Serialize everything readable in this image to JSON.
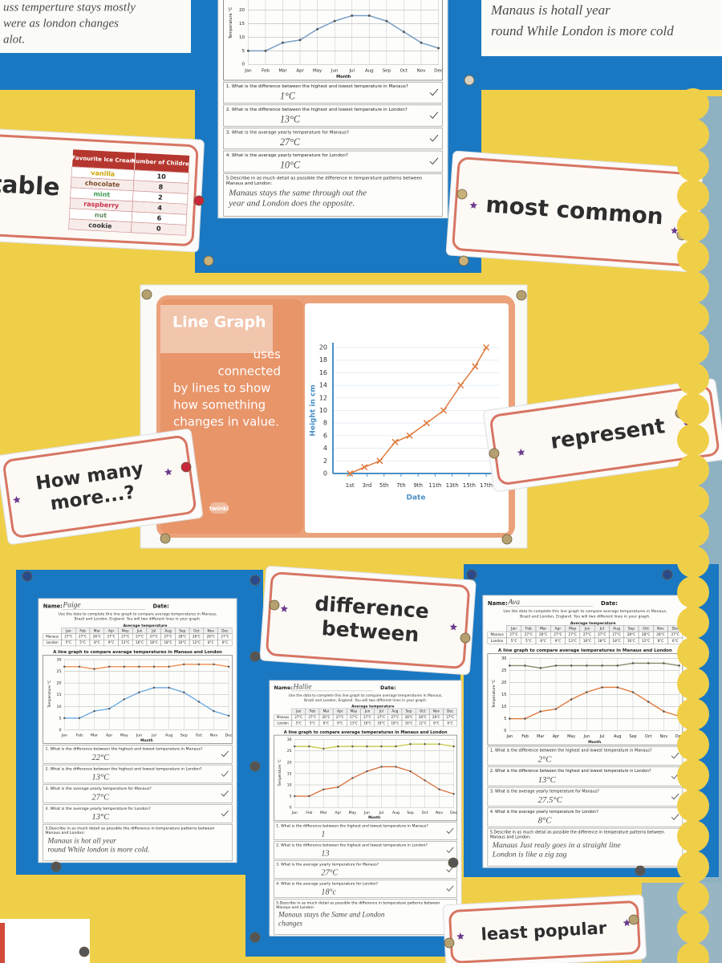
{
  "cards": [
    {
      "lines": [
        "table"
      ]
    },
    {
      "lines": [
        "most common"
      ]
    },
    {
      "lines": [
        "How many",
        "more...?"
      ]
    },
    {
      "lines": [
        "represent"
      ]
    },
    {
      "lines": [
        "difference",
        "between"
      ]
    },
    {
      "lines": [
        "least popular"
      ]
    }
  ],
  "ice_cream_table": {
    "headers": [
      "Favourite Ice Cream",
      "Number of Children"
    ],
    "rows": [
      [
        "vanilla",
        "10"
      ],
      [
        "chocolate",
        "8"
      ],
      [
        "mint",
        "2"
      ],
      [
        "raspberry",
        "4"
      ],
      [
        "nut",
        "6"
      ],
      [
        "cookie",
        "0"
      ]
    ]
  },
  "poster": {
    "title": "Line Graph",
    "text": [
      "uses",
      "connected",
      "by lines to show",
      "how something",
      "changes in value."
    ],
    "brand": "twinkl"
  },
  "chart_data": {
    "type": "line",
    "x": [
      1,
      2.7,
      4.5,
      6.3,
      8,
      10,
      12,
      14,
      15.7,
      17
    ],
    "values": [
      0,
      1,
      2,
      5,
      6,
      8,
      10,
      14,
      17,
      20
    ],
    "color": "#e0793a",
    "xlim": [
      -1,
      18.5
    ],
    "xticks": [
      {
        "value": 1,
        "label": "1st"
      },
      {
        "value": 3,
        "label": "3rd"
      },
      {
        "value": 5,
        "label": "5th"
      },
      {
        "value": 7,
        "label": "7th"
      },
      {
        "value": 9,
        "label": "9th"
      },
      {
        "value": 11,
        "label": "11th"
      },
      {
        "value": 13,
        "label": "13th"
      },
      {
        "value": 15,
        "label": "15th"
      },
      {
        "value": 17,
        "label": "17th"
      }
    ],
    "ylim": [
      0,
      20
    ],
    "yticks": [
      0,
      2,
      4,
      6,
      8,
      10,
      12,
      14,
      16,
      18,
      20
    ],
    "xlabel": "Date",
    "ylabel": "Height in cm",
    "grid": true
  },
  "worksheet": {
    "name_label": "Name:",
    "date_label": "Date:",
    "instructions": [
      "Use the data to complete this line graph to compare average temperatures in Manaus,",
      "Brazil and London, England. You will two different lines in your graph."
    ],
    "table_title": "Average temperature",
    "months": [
      "Jan",
      "Feb",
      "Mar",
      "Apr",
      "May",
      "Jun",
      "Jul",
      "Aug",
      "Sep",
      "Oct",
      "Nov",
      "Dec"
    ],
    "rows": [
      [
        "Manaus",
        "27°C",
        "27°C",
        "26°C",
        "27°C",
        "27°C",
        "27°C",
        "27°C",
        "27°C",
        "28°C",
        "28°C",
        "28°C",
        "27°C"
      ],
      [
        "London",
        "5°C",
        "5°C",
        "8°C",
        "9°C",
        "13°C",
        "16°C",
        "18°C",
        "18°C",
        "16°C",
        "12°C",
        "8°C",
        "6°C"
      ]
    ],
    "graph_title": "A line graph to compare average temperatures in Manaus and London",
    "ylabel": "Temperature °C",
    "xlabel": "Month",
    "ylim": [
      0,
      30
    ],
    "yticks": [
      0,
      5,
      10,
      15,
      20,
      25,
      30
    ],
    "manaus": [
      27,
      27,
      26,
      27,
      27,
      27,
      27,
      27,
      28,
      28,
      28,
      27
    ],
    "london": [
      5,
      5,
      8,
      9,
      13,
      16,
      18,
      18,
      16,
      12,
      8,
      6
    ],
    "questions": [
      "1. What is the difference between the highest and lowest temperature in Manaus?",
      "2. What is the difference between the highest and lowest temperature in London?",
      "3. What is the average yearly temperature for Manaus?",
      "4. What is the average yearly temperature for London?",
      [
        "5.Describe in as much detail as possible the difference in temperature patterns between",
        "Manaus and London:"
      ]
    ]
  },
  "sheets": [
    {
      "answers": [
        "1°C",
        "13°C",
        "27°C",
        "10°C",
        [
          "Manaus stays the same through out the",
          "year and London does the opposite."
        ]
      ]
    },
    {
      "name": "Paige",
      "answers": [
        "22°C",
        "13°C",
        "27°C",
        "13°C",
        [
          "Manaus is hot all year",
          "round While london is more cold."
        ]
      ]
    },
    {
      "name": "Hallie",
      "answers": [
        "1",
        "13",
        "27°C",
        "18°c",
        [
          "Manaus stays the Same and London",
          "changes"
        ]
      ]
    },
    {
      "name": "Ava",
      "answers": [
        "2°C",
        "13°C",
        "27.5°C",
        "8°C",
        [
          "Manaus Just realy goes in a straight line",
          "London is like a zig zag"
        ]
      ]
    }
  ],
  "fragments": {
    "top_left": [
      "uss temperture stays mostly",
      "were as london changes",
      "alot."
    ],
    "top_right": [
      "Manaus is hotall year",
      "round While London is more cold"
    ]
  }
}
